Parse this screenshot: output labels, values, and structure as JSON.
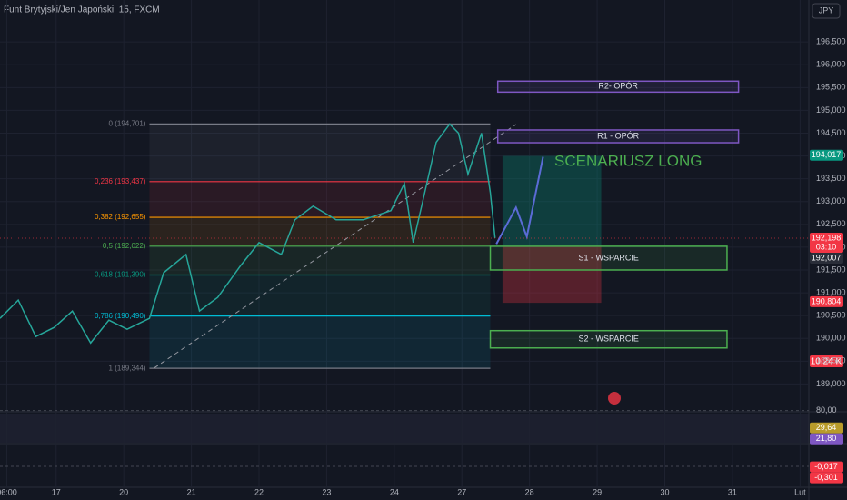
{
  "chart_data": {
    "type": "line",
    "title": "Funt Brytyjski/Jen Japoński, 15, FXCM",
    "currency": "JPY",
    "x": [
      0.17,
      0.44,
      0.7,
      0.97,
      1.24,
      1.51,
      1.78,
      2.05,
      2.38,
      2.59,
      2.92,
      3.12,
      3.39,
      3.73,
      4.0,
      4.33,
      4.53,
      4.8,
      5.14,
      5.54,
      5.95,
      6.15,
      6.28,
      6.42,
      6.62,
      6.82,
      6.95,
      7.09,
      7.29,
      7.42,
      7.49
    ],
    "series": [
      {
        "color": "#26a69a",
        "values": [
          190.44,
          190.84,
          190.04,
          190.24,
          190.6,
          189.9,
          190.4,
          190.2,
          190.44,
          191.44,
          191.84,
          190.6,
          190.9,
          191.6,
          192.1,
          191.84,
          192.6,
          192.9,
          192.6,
          192.6,
          192.8,
          193.4,
          192.1,
          193.0,
          194.3,
          194.7,
          194.5,
          193.6,
          194.5,
          193.2,
          192.2
        ]
      }
    ],
    "xlim": [
      0.17,
      12.13
    ],
    "xticks": [
      {
        "value": 0.27,
        "label": "06:00"
      },
      {
        "value": 1,
        "label": "17"
      },
      {
        "value": 2,
        "label": "20"
      },
      {
        "value": 3,
        "label": "21"
      },
      {
        "value": 4,
        "label": "22"
      },
      {
        "value": 5,
        "label": "23"
      },
      {
        "value": 6,
        "label": "24"
      },
      {
        "value": 7,
        "label": "27"
      },
      {
        "value": 8,
        "label": "28"
      },
      {
        "value": 9,
        "label": "29"
      },
      {
        "value": 10,
        "label": "30"
      },
      {
        "value": 11,
        "label": "31"
      },
      {
        "value": 12,
        "label": "Lut"
      }
    ],
    "ylim": [
      188.41,
      197.42
    ],
    "yticks": [
      {
        "value": 196.5,
        "label": "196,500"
      },
      {
        "value": 196,
        "label": "196,000"
      },
      {
        "value": 195.5,
        "label": "195,500"
      },
      {
        "value": 195,
        "label": "195,000"
      },
      {
        "value": 194.5,
        "label": "194,500"
      },
      {
        "value": 194,
        "label": "194,000"
      },
      {
        "value": 193.5,
        "label": "193,500"
      },
      {
        "value": 193,
        "label": "193,000"
      },
      {
        "value": 192.5,
        "label": "192,500"
      },
      {
        "value": 192,
        "label": "192,000"
      },
      {
        "value": 191.5,
        "label": "191,500"
      },
      {
        "value": 191,
        "label": "191,000"
      },
      {
        "value": 190.5,
        "label": "190,500"
      },
      {
        "value": 190,
        "label": "190,000"
      },
      {
        "value": 189.5,
        "label": "189,500"
      },
      {
        "value": 189,
        "label": "189,000"
      }
    ],
    "grid": true,
    "fib_levels": [
      {
        "value": 194.701,
        "label": "0 (194,701)",
        "color": "#787b86"
      },
      {
        "value": 193.437,
        "label": "0,236 (193,437)",
        "color": "#f23645"
      },
      {
        "value": 192.655,
        "label": "0,382 (192,655)",
        "color": "#ff9800"
      },
      {
        "value": 192.022,
        "label": "0,5 (192,022)",
        "color": "#4caf50"
      },
      {
        "value": 191.39,
        "label": "0,618 (191,390)",
        "color": "#089981"
      },
      {
        "value": 190.49,
        "label": "0,786 (190,490)",
        "color": "#00bcd4"
      },
      {
        "value": 189.344,
        "label": "1 (189,344)",
        "color": "#787b86"
      }
    ],
    "fib_x": [
      2.38,
      7.42
    ],
    "trendline": {
      "x": [
        2.45,
        7.8
      ],
      "values": [
        189.35,
        194.69
      ]
    },
    "zones": [
      {
        "label": "R2- OPÓR",
        "top": 195.64,
        "bottom": 195.4,
        "x": [
          7.53,
          11.09
        ],
        "color": "#7e57c2"
      },
      {
        "label": "R1 - OPÓR",
        "top": 194.57,
        "bottom": 194.29,
        "x": [
          7.53,
          11.09
        ],
        "color": "#7e57c2"
      },
      {
        "label": "S1 - WSPARCIE",
        "top": 192.02,
        "bottom": 191.5,
        "x": [
          7.42,
          10.92
        ],
        "color": "#4caf50"
      },
      {
        "label": "S2 - WSPARCIE",
        "top": 190.17,
        "bottom": 189.79,
        "x": [
          7.42,
          10.92
        ],
        "color": "#4caf50"
      }
    ],
    "position": {
      "entry": 192.02,
      "target": 194.0,
      "stop": 190.78,
      "x": [
        7.6,
        9.06
      ]
    },
    "projection": {
      "x": [
        7.51,
        7.8,
        7.96,
        8.2
      ],
      "values": [
        192.07,
        192.87,
        192.23,
        193.98
      ],
      "color": "#5b6bd6"
    },
    "scenario_label": "SCENARIUSZ LONG",
    "price_tags": [
      {
        "value": 194.017,
        "label": "194,017",
        "color": "#089981"
      },
      {
        "value": 192.198,
        "label": "192,198",
        "sub": "03:10",
        "color": "#f23645"
      },
      {
        "value": 192.007,
        "label": "192,007",
        "color": "#2a2e39"
      },
      {
        "value": 190.804,
        "label": "190,804",
        "color": "#f23645"
      }
    ],
    "volume_tag": "10,24 K",
    "rsi": {
      "ylim": [
        0,
        100
      ],
      "level": {
        "value": 80,
        "label": "80,00"
      },
      "tags": [
        {
          "value": 29.64,
          "label": "29,64",
          "color": "#b89b2a"
        },
        {
          "value": 21.8,
          "label": "21,80",
          "color": "#7e57c2"
        }
      ]
    },
    "macd": {
      "ylim": [
        -0.9,
        0.6
      ],
      "level": {
        "value": 0,
        "label": "0,000"
      },
      "tags": [
        {
          "value": -0.017,
          "label": "-0,017",
          "color": "#f23645"
        },
        {
          "value": -0.301,
          "label": "-0,301",
          "color": "#f23645"
        }
      ]
    }
  }
}
